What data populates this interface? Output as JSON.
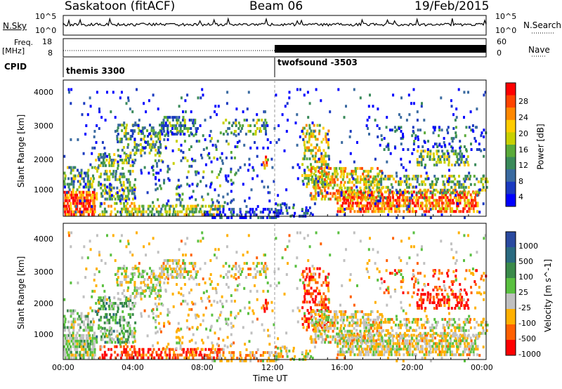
{
  "header": {
    "station": "Saskatoon (fitACF)",
    "beam": "Beam 06",
    "date": "19/Feb/2015"
  },
  "noise_panel": {
    "left_label": "N.Sky",
    "right_label": "N.Search",
    "left_ticks": [
      "10^5",
      "10^0"
    ],
    "right_ticks": [
      "10^5",
      "10^0"
    ]
  },
  "freq_panel": {
    "left_label_1": "Freq.",
    "left_label_2": "[MHz]",
    "right_label": "Nave",
    "left_ticks": [
      "18",
      "8"
    ],
    "right_ticks": [
      "60",
      "0"
    ]
  },
  "cpid": {
    "label": "CPID",
    "segments": [
      {
        "name": "themis 3300",
        "start_ut": "00:00",
        "end_ut": "12:00"
      },
      {
        "name": "twofsound -3503",
        "start_ut": "12:00",
        "end_ut": "24:00"
      }
    ]
  },
  "power_colorbar": {
    "label": "Power [dB]",
    "ticks": [
      "28",
      "24",
      "20",
      "16",
      "12",
      "8",
      "4"
    ],
    "colors": [
      "#ff0000",
      "#ff4400",
      "#ff8800",
      "#ffcc00",
      "#c8d000",
      "#5aaa3a",
      "#3a8a5a",
      "#3a6aa0",
      "#1a3ac0",
      "#0000ff"
    ]
  },
  "velocity_colorbar": {
    "label": "Velocity [m s^-1]",
    "ticks": [
      "1000",
      "500",
      "100",
      "25",
      "-25",
      "-100",
      "-500",
      "-1000"
    ],
    "colors": [
      "#2a4aa0",
      "#2a6a80",
      "#3a8a4a",
      "#5ac040",
      "#c0c0c0",
      "#ffb000",
      "#ff6000",
      "#ff0000"
    ]
  },
  "axes": {
    "y_label": "Slant Range [km]",
    "y_ticks": [
      "4000",
      "3000",
      "2000",
      "1000"
    ],
    "x_label": "Time UT",
    "x_ticks": [
      "00:00",
      "04:00",
      "08:00",
      "12:00",
      "16:00",
      "20:00",
      "00:00"
    ]
  },
  "chart_data": {
    "type": "heatmap",
    "panels": [
      "Power",
      "Velocity"
    ],
    "xlabel": "Time UT",
    "ylabel": "Slant Range [km]",
    "xlim_hours": [
      0,
      24
    ],
    "ylim_km": [
      200,
      4600
    ],
    "power_scale_db": [
      0,
      30
    ],
    "velocity_scale_ms": [
      -1000,
      1000
    ]
  }
}
